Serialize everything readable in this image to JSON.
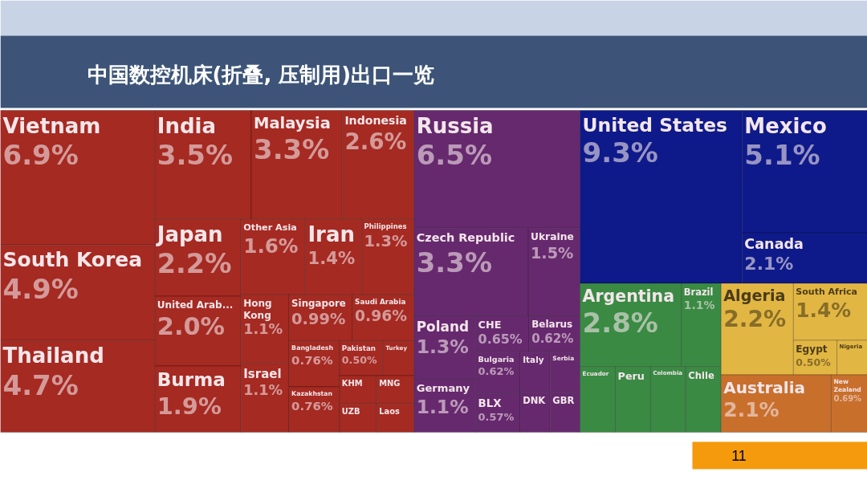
{
  "chart_data": {
    "type": "other",
    "title": "中国数控机床(折叠, 压制用)出口一览",
    "categories": [
      "Vietnam",
      "South Korea",
      "Thailand",
      "India",
      "Malaysia",
      "Indonesia",
      "Japan",
      "United Arab...",
      "Burma",
      "Other Asia",
      "Iran",
      "Philippines",
      "Hong Kong",
      "Israel",
      "Singapore",
      "Saudi Arabia",
      "Bangladesh",
      "Kazakhstan",
      "Pakistan",
      "Turkey",
      "KHM",
      "UZB",
      "MNG",
      "Laos",
      "Russia",
      "Czech Republic",
      "Ukraine",
      "Poland",
      "Germany",
      "CHE",
      "Belarus",
      "Bulgaria",
      "BLX",
      "Italy",
      "Serbia",
      "DNK",
      "GBR",
      "United States",
      "Mexico",
      "Canada",
      "Argentina",
      "Brazil",
      "Ecuador",
      "Peru",
      "Colombia",
      "Chile",
      "Algeria",
      "South Africa",
      "Egypt",
      "Nigeria",
      "Australia",
      "New Zealand"
    ],
    "values": [
      6.9,
      4.9,
      4.7,
      3.5,
      3.3,
      2.6,
      2.2,
      2.0,
      1.9,
      1.6,
      1.4,
      1.3,
      1.1,
      1.1,
      0.99,
      0.96,
      0.76,
      0.76,
      0.5,
      null,
      null,
      null,
      null,
      null,
      6.5,
      3.3,
      1.5,
      1.3,
      1.1,
      0.65,
      0.62,
      0.62,
      0.57,
      null,
      null,
      null,
      null,
      9.3,
      5.1,
      2.1,
      2.8,
      1.1,
      null,
      null,
      null,
      null,
      2.2,
      1.4,
      0.5,
      null,
      2.1,
      0.69
    ],
    "value_labels": [
      "6.9%",
      "4.9%",
      "4.7%",
      "3.5%",
      "3.3%",
      "2.6%",
      "2.2%",
      "2.0%",
      "1.9%",
      "1.6%",
      "1.4%",
      "1.3%",
      "1.1%",
      "1.1%",
      "0.99%",
      "0.96%",
      "0.76%",
      "0.76%",
      "0.50%",
      null,
      null,
      null,
      null,
      null,
      "6.5%",
      "3.3%",
      "1.5%",
      "1.3%",
      "1.1%",
      "0.65%",
      "0.62%",
      "0.62%",
      "0.57%",
      null,
      null,
      null,
      null,
      "9.3%",
      "5.1%",
      "2.1%",
      "2.8%",
      "1.1%",
      null,
      null,
      null,
      null,
      "2.2%",
      "1.4%",
      "0.50%",
      null,
      "2.1%",
      "0.69%"
    ],
    "colors": [
      "#a52a22",
      "#a52a22",
      "#a52a22",
      "#a52a22",
      "#a52a22",
      "#a52a22",
      "#a52a22",
      "#a52a22",
      "#a52a22",
      "#a52a22",
      "#a52a22",
      "#a52a22",
      "#a52a22",
      "#a52a22",
      "#a52a22",
      "#a52a22",
      "#a52a22",
      "#a52a22",
      "#a52a22",
      "#a52a22",
      "#a52a22",
      "#a52a22",
      "#a52a22",
      "#a52a22",
      "#66296e",
      "#66296e",
      "#66296e",
      "#66296e",
      "#66296e",
      "#66296e",
      "#66296e",
      "#66296e",
      "#66296e",
      "#66296e",
      "#66296e",
      "#66296e",
      "#66296e",
      "#0f1a8a",
      "#0f1a8a",
      "#0f1a8a",
      "#3a8a44",
      "#3a8a44",
      "#3a8a44",
      "#3a8a44",
      "#3a8a44",
      "#3a8a44",
      "#e2b643",
      "#e2b643",
      "#e2b643",
      "#e2b643",
      "#c96f2c",
      "#c96f2c"
    ],
    "annotations": [
      "11"
    ]
  }
}
